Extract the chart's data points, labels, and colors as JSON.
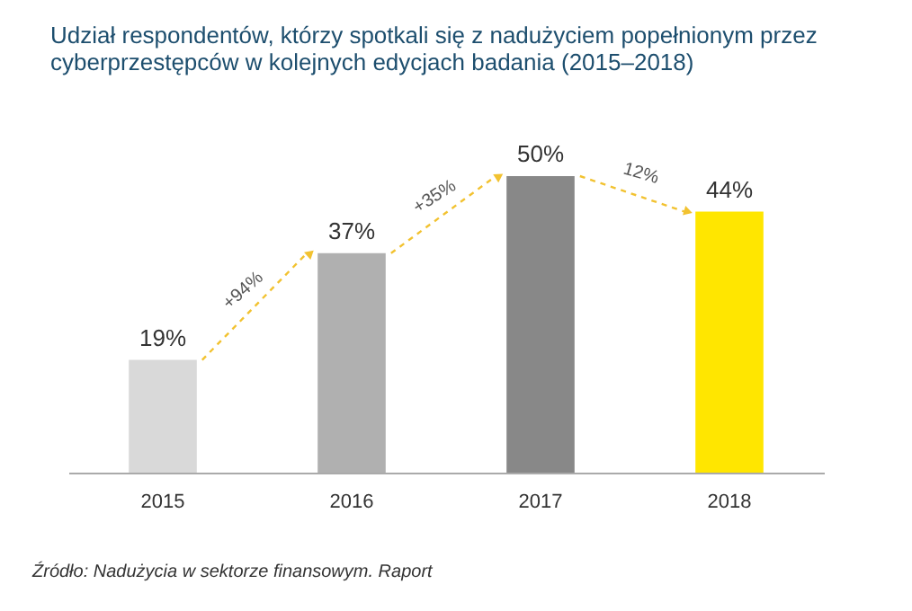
{
  "chart_data": {
    "type": "bar",
    "title": [
      "Udział respondentów, którzy spotkali się z nadużyciem popełnionym przez",
      "cyberprzestępców w kolejnych edycjach badania (2015–2018)"
    ],
    "categories": [
      "2015",
      "2016",
      "2017",
      "2018"
    ],
    "values": [
      19,
      37,
      50,
      44
    ],
    "colors": [
      "#d9d9d9",
      "#b0b0b0",
      "#888888",
      "#ffe600"
    ],
    "value_labels": [
      "19%",
      "37%",
      "50%",
      "44%"
    ],
    "annotations": [
      "+94%",
      "+35%",
      "12%",
      "Źródło: Nadużycia w sektorze finansowym. Raport"
    ]
  }
}
